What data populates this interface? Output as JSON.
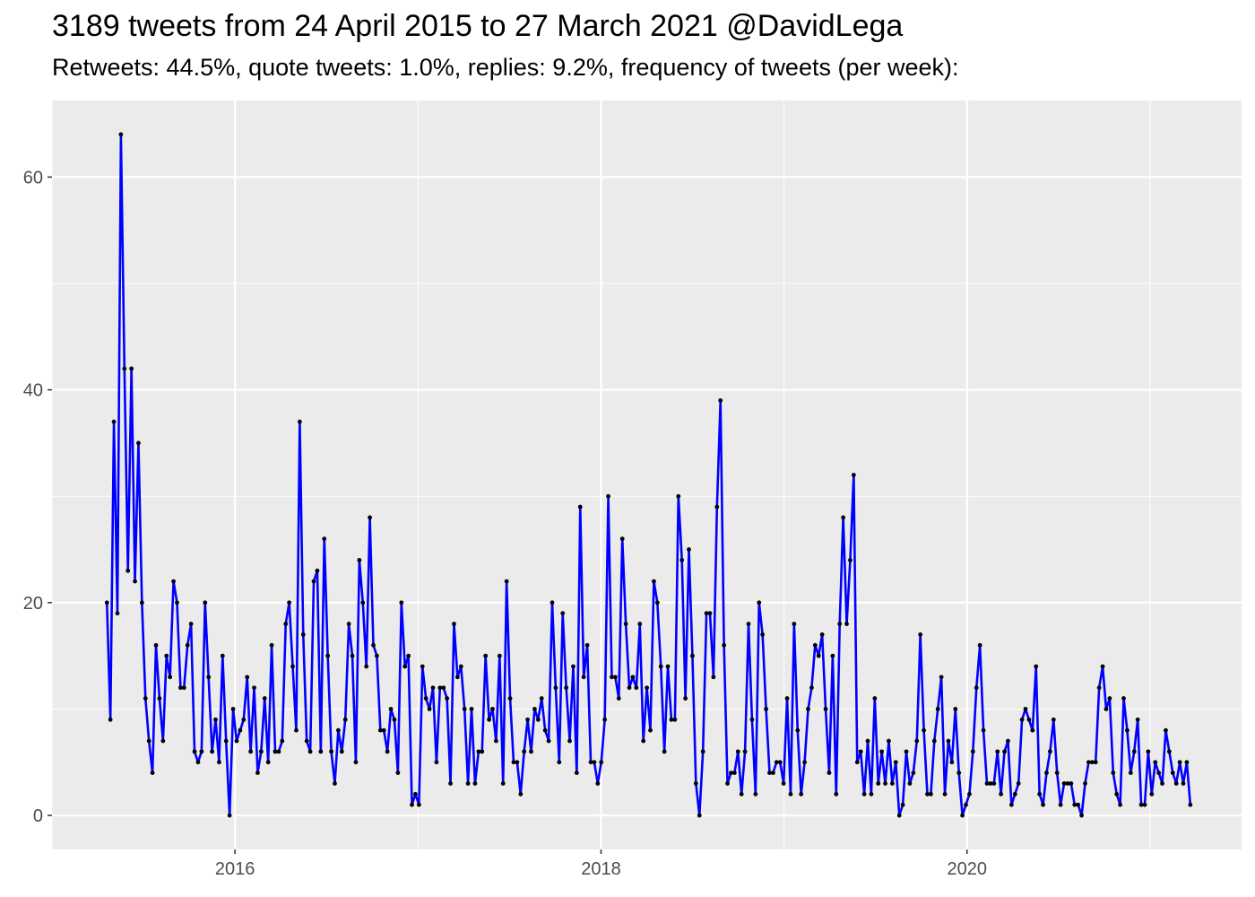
{
  "chart_data": {
    "type": "line",
    "title": "3189 tweets from 24 April 2015 to 27 March 2021 @DavidLega",
    "subtitle": "Retweets: 44.5%, quote tweets: 1.0%, replies: 9.2%, frequency of tweets (per week):",
    "xlabel": "",
    "ylabel": "",
    "xlim": [
      2015.0,
      2021.5
    ],
    "ylim": [
      -3.2,
      67.2
    ],
    "x_ticks": [
      2016,
      2018,
      2020
    ],
    "x_tick_labels": [
      "2016",
      "2018",
      "2020"
    ],
    "y_ticks": [
      0,
      20,
      40,
      60
    ],
    "y_tick_labels": [
      "0",
      "20",
      "40",
      "60"
    ],
    "grid": true,
    "legend": "none",
    "series": [
      {
        "color": "#0000ff",
        "marker_color": "#000000",
        "x_start": 2015.3,
        "x_end": 2021.22,
        "values": [
          20,
          9,
          37,
          19,
          64,
          42,
          23,
          42,
          22,
          35,
          20,
          11,
          7,
          4,
          16,
          11,
          7,
          15,
          13,
          22,
          20,
          12,
          12,
          16,
          18,
          6,
          5,
          6,
          20,
          13,
          6,
          9,
          5,
          15,
          7,
          0,
          10,
          7,
          8,
          9,
          13,
          6,
          12,
          4,
          6,
          11,
          5,
          16,
          6,
          6,
          7,
          18,
          20,
          14,
          8,
          37,
          17,
          7,
          6,
          22,
          23,
          6,
          26,
          15,
          6,
          3,
          8,
          6,
          9,
          18,
          15,
          5,
          24,
          20,
          14,
          28,
          16,
          15,
          8,
          8,
          6,
          10,
          9,
          4,
          20,
          14,
          15,
          1,
          2,
          1,
          14,
          11,
          10,
          12,
          5,
          12,
          12,
          11,
          3,
          18,
          13,
          14,
          10,
          3,
          10,
          3,
          6,
          6,
          15,
          9,
          10,
          7,
          15,
          3,
          22,
          11,
          5,
          5,
          2,
          6,
          9,
          6,
          10,
          9,
          11,
          8,
          7,
          20,
          12,
          5,
          19,
          12,
          7,
          14,
          4,
          29,
          13,
          16,
          5,
          5,
          3,
          5,
          9,
          30,
          13,
          13,
          11,
          26,
          18,
          12,
          13,
          12,
          18,
          7,
          12,
          8,
          22,
          20,
          14,
          6,
          14,
          9,
          9,
          30,
          24,
          11,
          25,
          15,
          3,
          0,
          6,
          19,
          19,
          13,
          29,
          39,
          16,
          3,
          4,
          4,
          6,
          2,
          6,
          18,
          9,
          2,
          20,
          17,
          10,
          4,
          4,
          5,
          5,
          3,
          11,
          2,
          18,
          8,
          2,
          5,
          10,
          12,
          16,
          15,
          17,
          10,
          4,
          15,
          2,
          18,
          28,
          18,
          24,
          32,
          5,
          6,
          2,
          7,
          2,
          11,
          3,
          6,
          3,
          7,
          3,
          5,
          0,
          1,
          6,
          3,
          4,
          7,
          17,
          8,
          2,
          2,
          7,
          10,
          13,
          2,
          7,
          5,
          10,
          4,
          0,
          1,
          2,
          6,
          12,
          16,
          8,
          3,
          3,
          3,
          6,
          2,
          6,
          7,
          1,
          2,
          3,
          9,
          10,
          9,
          8,
          14,
          2,
          1,
          4,
          6,
          9,
          4,
          1,
          3,
          3,
          3,
          1,
          1,
          0,
          3,
          5,
          5,
          5,
          12,
          14,
          10,
          11,
          4,
          2,
          1,
          11,
          8,
          4,
          6,
          9,
          1,
          1,
          6,
          2,
          5,
          4,
          3,
          8,
          6,
          4,
          3,
          5,
          3,
          5,
          1
        ]
      }
    ]
  }
}
